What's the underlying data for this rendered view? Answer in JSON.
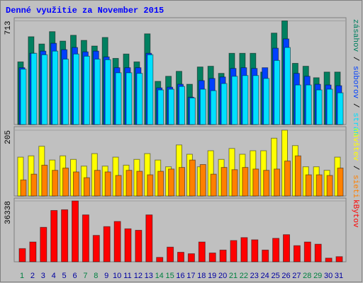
{
  "chart_data": [
    {
      "type": "bar",
      "title": "Denné využitie za November 2015",
      "legend_separator": " / ",
      "ylim": [
        0,
        713
      ],
      "yticks": [
        713
      ],
      "series": [
        {
          "name": "zásahov",
          "color": "#008060",
          "values": [
            431,
            604,
            554,
            639,
            574,
            614,
            579,
            540,
            599,
            455,
            485,
            431,
            624,
            297,
            332,
            366,
            277,
            396,
            401,
            352,
            490,
            490,
            490,
            361,
            629,
            713,
            421,
            401,
            322,
            361,
            361
          ]
        },
        {
          "name": "súborov",
          "color": "#0040ff",
          "values": [
            391,
            490,
            505,
            559,
            515,
            530,
            500,
            505,
            465,
            391,
            391,
            391,
            490,
            252,
            257,
            277,
            188,
            302,
            317,
            327,
            386,
            391,
            386,
            391,
            525,
            589,
            352,
            332,
            277,
            272,
            267
          ]
        },
        {
          "name": "strán",
          "color": "#00e0ff",
          "values": [
            381,
            490,
            480,
            505,
            450,
            485,
            470,
            450,
            446,
            356,
            356,
            352,
            480,
            238,
            243,
            262,
            183,
            243,
            233,
            282,
            332,
            337,
            337,
            317,
            441,
            530,
            272,
            272,
            238,
            243,
            218
          ]
        }
      ]
    },
    {
      "type": "bar",
      "ylim": [
        0,
        205
      ],
      "yticks": [
        205
      ],
      "legend_separator": " / ",
      "series": [
        {
          "name": "návštev",
          "color": "#ffff00",
          "values": [
            121,
            125,
            155,
            112,
            125,
            114,
            93,
            132,
            93,
            121,
            96,
            114,
            132,
            112,
            91,
            159,
            130,
            91,
            141,
            114,
            148,
            130,
            141,
            141,
            180,
            205,
            157,
            91,
            91,
            80,
            121
          ]
        },
        {
          "name": "sieti",
          "color": "#ff8000",
          "values": [
            50,
            68,
            96,
            80,
            87,
            75,
            57,
            80,
            75,
            64,
            80,
            77,
            66,
            77,
            84,
            89,
            112,
            98,
            68,
            89,
            82,
            89,
            84,
            80,
            84,
            109,
            125,
            66,
            66,
            64,
            87
          ]
        }
      ]
    },
    {
      "type": "bar",
      "ylim": [
        0,
        36338
      ],
      "yticks": [
        36338
      ],
      "categories": [
        "1",
        "2",
        "3",
        "4",
        "5",
        "6",
        "7",
        "8",
        "9",
        "10",
        "11",
        "12",
        "13",
        "14",
        "15",
        "16",
        "17",
        "18",
        "19",
        "20",
        "21",
        "22",
        "23",
        "24",
        "25",
        "26",
        "27",
        "28",
        "29",
        "30",
        "31"
      ],
      "category_colors": [
        "#008040",
        "#0000a0",
        "#0000a0",
        "#0000a0",
        "#0000a0",
        "#0000a0",
        "#008040",
        "#008040",
        "#0000a0",
        "#0000a0",
        "#0000a0",
        "#0000a0",
        "#0000a0",
        "#008040",
        "#008040",
        "#0000a0",
        "#0000a0",
        "#0000a0",
        "#0000a0",
        "#0000a0",
        "#008040",
        "#008040",
        "#0000a0",
        "#0000a0",
        "#0000a0",
        "#0000a0",
        "#0000a0",
        "#008040",
        "#008040",
        "#0000a0",
        "#0000a0"
      ],
      "series": [
        {
          "name": "kBytov",
          "color": "#ff0000",
          "values": [
            7880,
            11821,
            20577,
            30646,
            31084,
            36338,
            28019,
            15761,
            21014,
            24079,
            19701,
            18825,
            28019,
            2627,
            8756,
            5691,
            4816,
            11821,
            5254,
            7005,
            12696,
            14447,
            13134,
            7005,
            14010,
            16199,
            9632,
            11821,
            10507,
            2189,
            3065
          ]
        }
      ]
    }
  ]
}
